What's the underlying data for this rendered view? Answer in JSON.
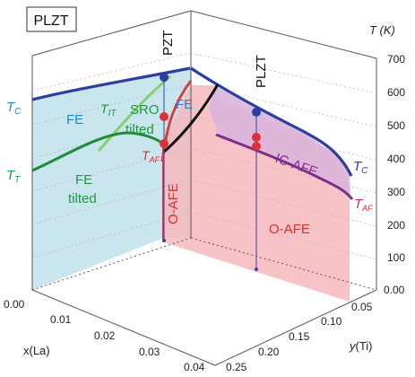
{
  "figure_title": "PLZT",
  "axes": {
    "x_label": "x(La)",
    "y_label": "y(Ti)",
    "t_label": "T (K)",
    "x_ticks": [
      "0.00",
      "0.01",
      "0.02",
      "0.03",
      "0.04"
    ],
    "y_ticks": [
      "0.05",
      "0.10",
      "0.15",
      "0.20",
      "0.25"
    ],
    "t_ticks": [
      "0.00",
      "100",
      "200",
      "300",
      "400",
      "500",
      "600",
      "700"
    ]
  },
  "left_face": {
    "phase_fe": "FE",
    "phase_sro": "SRO",
    "phase_sro2": "tilted",
    "phase_fe_tilted": "FE",
    "phase_fe_tilted2": "tilted",
    "line_tc": "T",
    "line_tc_sub": "C",
    "line_tit": "T",
    "line_tit_sub": "IT",
    "line_tt": "T",
    "line_tt_sub": "T",
    "line_taf": "T",
    "line_taf_sub": "AF"
  },
  "corner_labels": {
    "pzt": "PZT",
    "plzt": "PLZT"
  },
  "back_face": {
    "phase_fe": "FE",
    "phase_oafe": "O-AFE"
  },
  "right_face": {
    "phase_icafe": "IC-AFE",
    "phase_oafe": "O-AFE",
    "line_tc": "T",
    "line_tc_sub": "C",
    "line_taf": "T",
    "line_taf_sub": "AF"
  },
  "colors": {
    "tc_line": "#2a3f9e",
    "taf_line": "#e03a3a",
    "tit_line": "#3fb04a",
    "tt_line": "#1f8a3a",
    "ic_afe_line": "#7a2f8a",
    "fe_region": "#bfe0ea",
    "o_afe_region": "#f7b9bd",
    "ic_afe_region": "#d9b5dc",
    "label_fe": "#1a8ad0",
    "label_green": "#1f9a3a",
    "label_red": "#e02d2d",
    "label_purple": "#8a2f8f"
  }
}
